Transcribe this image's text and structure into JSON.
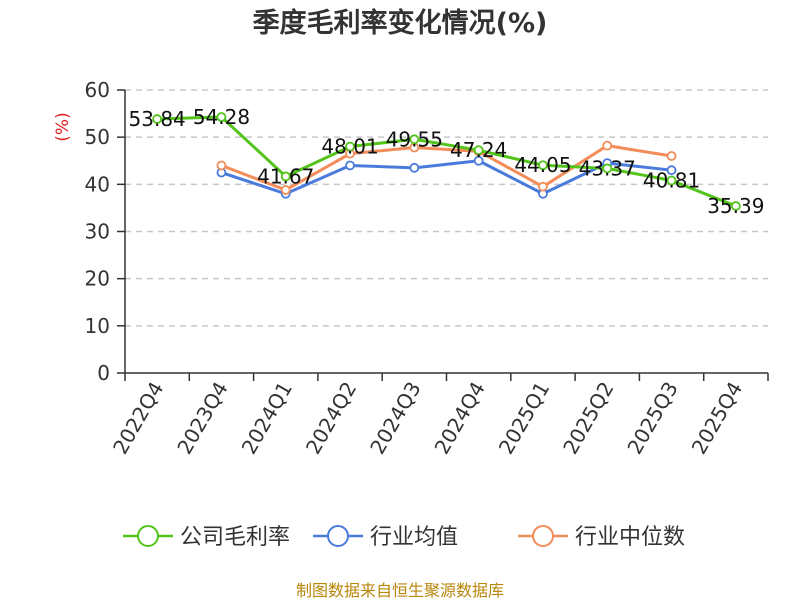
{
  "chart_data": {
    "type": "line",
    "title": "季度毛利率变化情况(%)",
    "ylabel": "(%)",
    "ylim": [
      0,
      60
    ],
    "yticks": [
      0,
      10,
      20,
      30,
      40,
      50,
      60
    ],
    "grid": "horizontal dashed",
    "legend_position": "bottom",
    "categories": [
      "2022Q4",
      "2023Q4",
      "2024Q1",
      "2024Q2",
      "2024Q3",
      "2024Q4",
      "2025Q1",
      "2025Q2",
      "2025Q3",
      "2025Q4"
    ],
    "series": [
      {
        "name": "公司毛利率",
        "color": "#52c41a",
        "values": [
          53.84,
          54.28,
          41.67,
          48.01,
          49.55,
          47.24,
          44.05,
          43.37,
          40.81,
          35.39
        ],
        "labels": [
          "53.84",
          "54.28",
          "41.67",
          "48.01",
          "49.55",
          "47.24",
          "44.05",
          "43.37",
          "40.81",
          "35.39"
        ]
      },
      {
        "name": "行业均值",
        "color": "#4a7bdc",
        "values": [
          null,
          42.5,
          38.0,
          44.0,
          43.5,
          45.0,
          38.0,
          44.5,
          43.0,
          null
        ]
      },
      {
        "name": "行业中位数",
        "color": "#f28c5a",
        "values": [
          null,
          44.0,
          38.8,
          46.5,
          47.8,
          47.0,
          39.5,
          48.2,
          46.0,
          null
        ]
      }
    ]
  },
  "source": "制图数据来自恒生聚源数据库"
}
